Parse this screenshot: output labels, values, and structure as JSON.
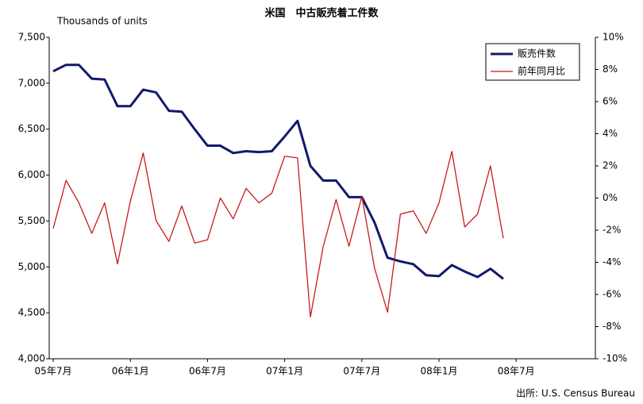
{
  "chart_data": {
    "type": "line",
    "title": "米国　中古販売着工件数",
    "y_label": "Thousands of units",
    "source": "出所: U.S. Census Bureau",
    "categories": [
      "05年7月",
      null,
      null,
      null,
      null,
      null,
      "06年1月",
      null,
      null,
      null,
      null,
      null,
      "06年7月",
      null,
      null,
      null,
      null,
      null,
      "07年1月",
      null,
      null,
      null,
      null,
      null,
      "07年7月",
      null,
      null,
      null,
      null,
      null,
      "08年1月",
      null,
      null,
      null,
      null,
      null,
      "08年7月"
    ],
    "series": [
      {
        "name": "販売件数",
        "color": "#13196b",
        "values": [
          7130,
          7200,
          7200,
          7050,
          7040,
          6750,
          6750,
          6930,
          6900,
          6700,
          6690,
          6500,
          6320,
          6320,
          6240,
          6260,
          6250,
          6260,
          6420,
          6590,
          6100,
          5940,
          5940,
          5760,
          5760,
          5480,
          5100,
          5060,
          5030,
          4910,
          4900,
          5020,
          4950,
          4890,
          4980,
          4870,
          null
        ]
      },
      {
        "name": "前年同月比",
        "color": "#c8191e",
        "axis": "y2",
        "values": [
          -1.9,
          1.1,
          -0.3,
          -2.2,
          -0.3,
          -4.1,
          -0.2,
          2.8,
          -1.4,
          -2.7,
          -0.5,
          -2.8,
          -2.6,
          0.0,
          -1.3,
          0.6,
          -0.3,
          0.3,
          2.6,
          2.5,
          -7.4,
          -3.0,
          -0.1,
          -3.0,
          0.1,
          -4.4,
          -7.1,
          -1.0,
          -0.8,
          -2.2,
          -0.3,
          2.9,
          -1.8,
          -1.0,
          2.0,
          -2.5,
          null
        ]
      }
    ],
    "ylim": [
      4000,
      7500
    ],
    "yticks": [
      {
        "value": 4000,
        "label": "4,000"
      },
      {
        "value": 4500,
        "label": "4,500"
      },
      {
        "value": 5000,
        "label": "5,000"
      },
      {
        "value": 5500,
        "label": "5,500"
      },
      {
        "value": 6000,
        "label": "6,000"
      },
      {
        "value": 6500,
        "label": "6,500"
      },
      {
        "value": 7000,
        "label": "7,000"
      },
      {
        "value": 7500,
        "label": "7,500"
      }
    ],
    "y2lim": [
      -10,
      10
    ],
    "y2ticks": [
      {
        "value": -10,
        "label": "-10%"
      },
      {
        "value": -8,
        "label": "-8%"
      },
      {
        "value": -6,
        "label": "-6%"
      },
      {
        "value": -4,
        "label": "-4%"
      },
      {
        "value": -2,
        "label": "-2%"
      },
      {
        "value": 0,
        "label": "0%"
      },
      {
        "value": 2,
        "label": "2%"
      },
      {
        "value": 4,
        "label": "4%"
      },
      {
        "value": 6,
        "label": "6%"
      },
      {
        "value": 8,
        "label": "8%"
      },
      {
        "value": 10,
        "label": "10%"
      }
    ],
    "grid": false,
    "legend_position": "upper-right"
  }
}
